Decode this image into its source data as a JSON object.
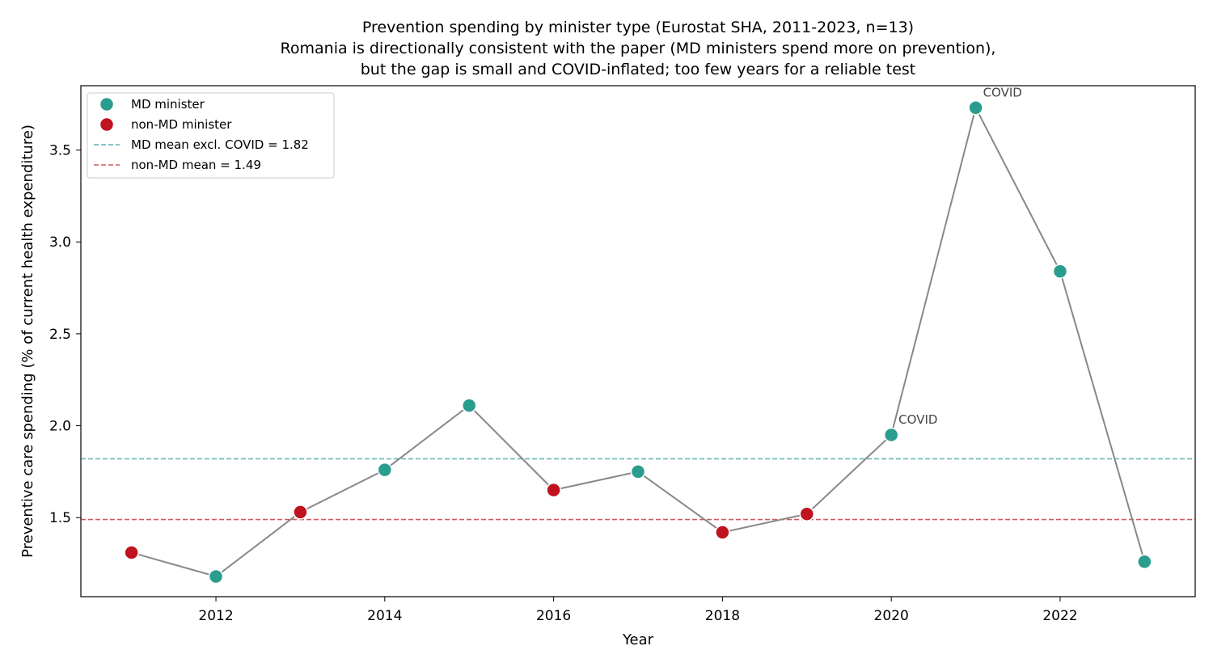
{
  "chart_data": {
    "type": "line",
    "title_lines": [
      "Prevention spending by minister type (Eurostat SHA, 2011-2023, n=13)",
      "Romania is directionally consistent with the paper (MD ministers spend more on prevention),",
      "but the gap is small and COVID-inflated; too few years for a reliable test"
    ],
    "xlabel": "Year",
    "ylabel": "Preventive care spending (% of current health expenditure)",
    "xlim": [
      2010.4,
      2023.6
    ],
    "ylim": [
      1.07,
      3.85
    ],
    "xticks": [
      2012,
      2014,
      2016,
      2018,
      2020,
      2022
    ],
    "yticks": [
      1.5,
      2.0,
      2.5,
      3.0,
      3.5
    ],
    "grid": false,
    "legend_position": "top-left",
    "points": [
      {
        "year": 2011,
        "value": 1.31,
        "group": "non-MD"
      },
      {
        "year": 2012,
        "value": 1.18,
        "group": "MD"
      },
      {
        "year": 2013,
        "value": 1.53,
        "group": "non-MD"
      },
      {
        "year": 2014,
        "value": 1.76,
        "group": "MD"
      },
      {
        "year": 2015,
        "value": 2.11,
        "group": "MD"
      },
      {
        "year": 2016,
        "value": 1.65,
        "group": "non-MD"
      },
      {
        "year": 2017,
        "value": 1.75,
        "group": "MD"
      },
      {
        "year": 2018,
        "value": 1.42,
        "group": "non-MD"
      },
      {
        "year": 2019,
        "value": 1.52,
        "group": "non-MD"
      },
      {
        "year": 2020,
        "value": 1.95,
        "group": "MD"
      },
      {
        "year": 2021,
        "value": 3.73,
        "group": "MD"
      },
      {
        "year": 2022,
        "value": 2.84,
        "group": "MD"
      },
      {
        "year": 2023,
        "value": 1.26,
        "group": "MD"
      }
    ],
    "reference_lines": [
      {
        "label": "MD mean excl. COVID = 1.82",
        "value": 1.82,
        "color": "#5fb3b0"
      },
      {
        "label": "non-MD mean = 1.49",
        "value": 1.49,
        "color": "#cf5a5f"
      }
    ],
    "legend": [
      {
        "label": "MD minister",
        "kind": "marker",
        "color": "#2a9d8f"
      },
      {
        "label": "non-MD minister",
        "kind": "marker",
        "color": "#c1121f"
      },
      {
        "label": "MD mean excl. COVID = 1.82",
        "kind": "dashed",
        "color": "#5fb3b0"
      },
      {
        "label": "non-MD mean = 1.49",
        "kind": "dashed",
        "color": "#cf5a5f"
      }
    ],
    "annotations": [
      {
        "text": "COVID",
        "year": 2020,
        "value": 1.95
      },
      {
        "text": "COVID",
        "year": 2021,
        "value": 3.73
      }
    ],
    "colors": {
      "MD": "#2a9d8f",
      "non-MD": "#c1121f",
      "line": "#888888"
    }
  }
}
